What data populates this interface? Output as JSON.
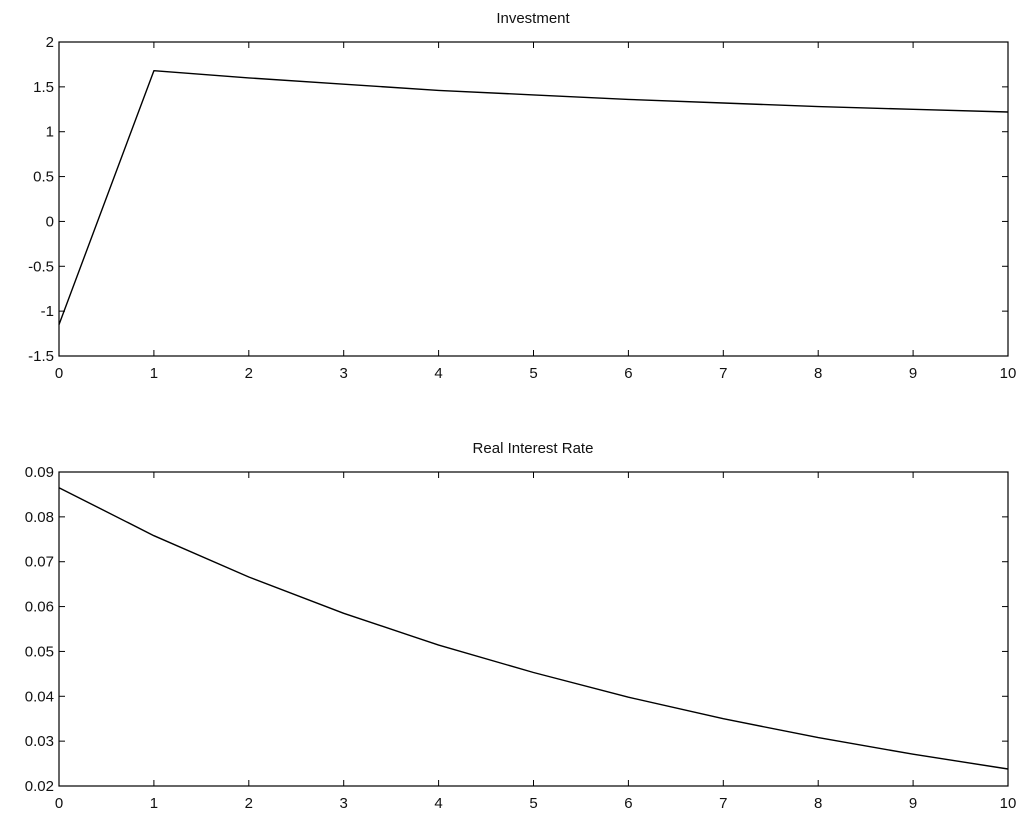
{
  "chart_data": [
    {
      "type": "line",
      "title": "Investment",
      "xlabel": "",
      "ylabel": "",
      "xlim": [
        0,
        10
      ],
      "ylim": [
        -1.5,
        2
      ],
      "grid": false,
      "xticks": [
        "0",
        "1",
        "2",
        "3",
        "4",
        "5",
        "6",
        "7",
        "8",
        "9",
        "10"
      ],
      "yticks": [
        "-1.5",
        "-1",
        "-0.5",
        "0",
        "0.5",
        "1",
        "1.5",
        "2"
      ],
      "series": [
        {
          "x": [
            0,
            1,
            2,
            3,
            4,
            5,
            6,
            7,
            8,
            9,
            10
          ],
          "y": [
            -1.15,
            1.68,
            1.6,
            1.53,
            1.46,
            1.41,
            1.36,
            1.32,
            1.28,
            1.25,
            1.22
          ]
        }
      ]
    },
    {
      "type": "line",
      "title": "Real Interest Rate",
      "xlabel": "",
      "ylabel": "",
      "xlim": [
        0,
        10
      ],
      "ylim": [
        0.02,
        0.09
      ],
      "grid": false,
      "xticks": [
        "0",
        "1",
        "2",
        "3",
        "4",
        "5",
        "6",
        "7",
        "8",
        "9",
        "10"
      ],
      "yticks": [
        "0.02",
        "0.03",
        "0.04",
        "0.05",
        "0.06",
        "0.07",
        "0.08",
        "0.09"
      ],
      "series": [
        {
          "x": [
            0,
            1,
            2,
            3,
            4,
            5,
            6,
            7,
            8,
            9,
            10
          ],
          "y": [
            0.0865,
            0.0758,
            0.0666,
            0.0585,
            0.0514,
            0.0453,
            0.0398,
            0.035,
            0.0308,
            0.0271,
            0.0238
          ]
        }
      ]
    }
  ]
}
